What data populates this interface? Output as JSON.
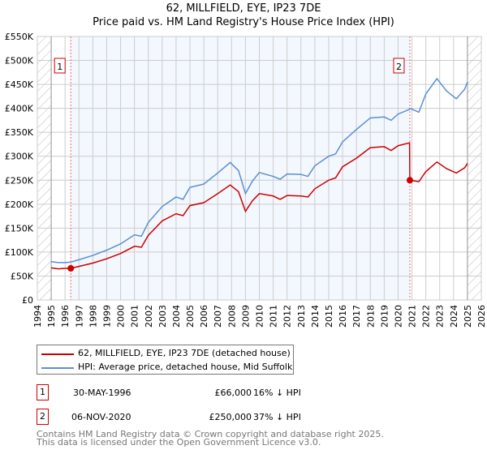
{
  "chart_data": {
    "type": "line",
    "title": "62, MILLFIELD, EYE, IP23 7DE",
    "subtitle": "Price paid vs. HM Land Registry's House Price Index (HPI)",
    "xlim": [
      1994,
      2026
    ],
    "ylim": [
      0,
      550000
    ],
    "x_ticks": [
      "1994",
      "1995",
      "1996",
      "1997",
      "1998",
      "1999",
      "2000",
      "2001",
      "2002",
      "2003",
      "2004",
      "2005",
      "2006",
      "2007",
      "2008",
      "2009",
      "2010",
      "2011",
      "2012",
      "2013",
      "2014",
      "2015",
      "2016",
      "2017",
      "2018",
      "2019",
      "2020",
      "2021",
      "2022",
      "2023",
      "2024",
      "2025",
      "2026"
    ],
    "y_ticks": [
      "£0",
      "£50K",
      "£100K",
      "£150K",
      "£200K",
      "£250K",
      "£300K",
      "£350K",
      "£400K",
      "£450K",
      "£500K",
      "£550K"
    ],
    "grid": true,
    "series": [
      {
        "name": "62, MILLFIELD, EYE, IP23 7DE (detached house)",
        "color": "#cc0000",
        "x": [
          1995,
          1995.5,
          1996,
          1996.41,
          1997,
          1998,
          1999,
          2000,
          2001,
          2001.5,
          2002,
          2003,
          2004,
          2004.5,
          2005,
          2006,
          2007,
          2007.9,
          2008.5,
          2009,
          2009.5,
          2010,
          2011,
          2011.5,
          2012,
          2013,
          2013.5,
          2014,
          2015,
          2015.5,
          2016,
          2017,
          2018,
          2019,
          2019.5,
          2020,
          2020.83,
          2020.85,
          2021.5,
          2022,
          2022.8,
          2023.5,
          2024.2,
          2024.8,
          2025
        ],
        "y": [
          67000,
          65000,
          66000,
          66000,
          70000,
          77000,
          86000,
          97000,
          112000,
          110000,
          135000,
          165000,
          180000,
          176000,
          197000,
          203000,
          222000,
          240000,
          226000,
          185000,
          207000,
          222000,
          217000,
          210000,
          218000,
          217000,
          215000,
          232000,
          250000,
          255000,
          278000,
          296000,
          318000,
          320000,
          312000,
          322000,
          328000,
          250000,
          247000,
          268000,
          288000,
          274000,
          265000,
          276000,
          285000
        ]
      },
      {
        "name": "HPI: Average price, detached house, Mid Suffolk",
        "color": "#5b8fd4",
        "x": [
          1995,
          1995.5,
          1996,
          1996.41,
          1997,
          1998,
          1999,
          2000,
          2001,
          2001.5,
          2002,
          2003,
          2004,
          2004.5,
          2005,
          2006,
          2007,
          2007.9,
          2008.5,
          2009,
          2009.5,
          2010,
          2011,
          2011.5,
          2012,
          2013,
          2013.5,
          2014,
          2015,
          2015.5,
          2016,
          2017,
          2018,
          2019,
          2019.5,
          2020,
          2020.83,
          2020.85,
          2021.5,
          2022,
          2022.8,
          2023.5,
          2024.2,
          2024.8,
          2025
        ],
        "y": [
          80000,
          78000,
          78000,
          79000,
          84000,
          93000,
          104000,
          117000,
          136000,
          133000,
          162000,
          195000,
          215000,
          210000,
          235000,
          242000,
          265000,
          287000,
          270000,
          222000,
          248000,
          266000,
          258000,
          252000,
          263000,
          262000,
          258000,
          280000,
          300000,
          305000,
          330000,
          356000,
          380000,
          382000,
          375000,
          388000,
          398000,
          400000,
          392000,
          430000,
          462000,
          436000,
          420000,
          440000,
          455000
        ]
      }
    ],
    "sales": [
      {
        "n": "1",
        "x": 1996.41,
        "y": 66000
      },
      {
        "n": "2",
        "x": 2020.85,
        "y": 250000
      }
    ]
  },
  "legend": {
    "property": "62, MILLFIELD, EYE, IP23 7DE (detached house)",
    "hpi": "HPI: Average price, detached house, Mid Suffolk"
  },
  "transactions": [
    {
      "n": "1",
      "date": "30-MAY-1996",
      "price": "£66,000",
      "diff": "16% ↓ HPI"
    },
    {
      "n": "2",
      "date": "06-NOV-2020",
      "price": "£250,000",
      "diff": "37% ↓ HPI"
    }
  ],
  "footer": {
    "line1": "Contains HM Land Registry data © Crown copyright and database right 2025.",
    "line2": "This data is licensed under the Open Government Licence v3.0."
  }
}
